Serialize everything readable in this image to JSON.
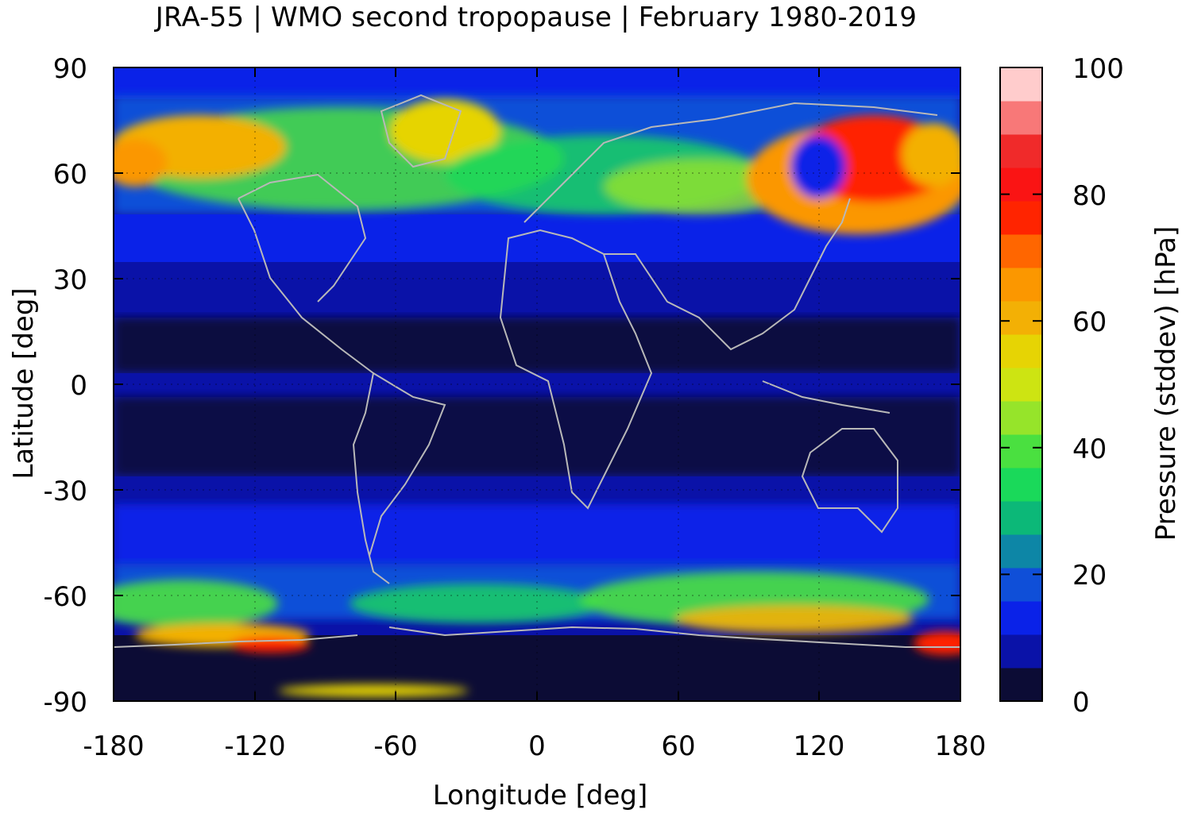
{
  "title": "JRA-55 | WMO second tropopause | February 1980-2019",
  "chart_data": {
    "type": "heatmap",
    "title": "JRA-55 | WMO second tropopause | February 1980-2019",
    "xlabel": "Longitude [deg]",
    "ylabel": "Latitude [deg]",
    "xlim": [
      -180,
      180
    ],
    "ylim": [
      -90,
      90
    ],
    "x_ticks": [
      "-180",
      "-120",
      "-60",
      "0",
      "60",
      "120",
      "180"
    ],
    "y_ticks": [
      "90",
      "60",
      "30",
      "0",
      "-30",
      "-60",
      "-90"
    ],
    "grid": true,
    "colorbar": {
      "label": "Pressure (stddev) [hPa]",
      "range": [
        0,
        100
      ],
      "ticks": [
        "100",
        "80",
        "60",
        "40",
        "20",
        "0"
      ],
      "colors": [
        "#0c0c35",
        "#0a12a8",
        "#0a22e8",
        "#0f4fd8",
        "#0d86a6",
        "#0cb878",
        "#1ad95a",
        "#4ae040",
        "#96e42a",
        "#cde412",
        "#e6d404",
        "#f3b005",
        "#fb9700",
        "#ff6600",
        "#ff2400",
        "#fa1414",
        "#f02a2a",
        "#f87878",
        "#ffcccc"
      ]
    },
    "features": "coastlines in grey; dotted grid every 60 deg lon, 30 deg lat"
  }
}
